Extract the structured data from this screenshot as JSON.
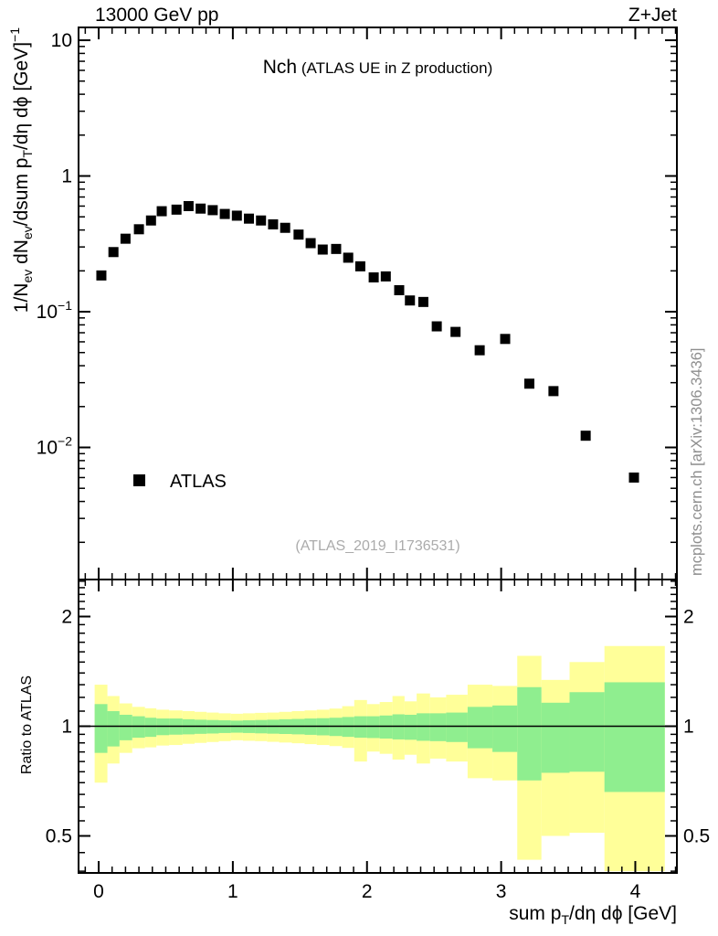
{
  "header": {
    "left": "13000 GeV pp",
    "right": "Z+Jet"
  },
  "title": {
    "main": "Nch",
    "detail": "(ATLAS UE in Z production)"
  },
  "legend": {
    "items": [
      {
        "label": "ATLAS",
        "marker": "filled-square",
        "color": "#000000"
      }
    ]
  },
  "watermark": {
    "text": "(ATLAS_2019_I1736531)",
    "color": "#ABABAB"
  },
  "side_note": {
    "text": "mcplots.cern.ch [arXiv:1306.3436]",
    "color": "#8E8E8E"
  },
  "colors": {
    "band_outer": "#FFFF99",
    "band_inner": "#8FEE8F",
    "marker": "#000000",
    "frame": "#000000"
  },
  "axes": {
    "x": {
      "title_parts": [
        {
          "t": "sum p"
        },
        {
          "t": "T",
          "s": "sub"
        },
        {
          "t": "/dη dϕ [GeV]"
        }
      ],
      "tick_values": [
        0,
        1,
        2,
        3,
        4
      ],
      "tick_labels": [
        "0",
        "1",
        "2",
        "3",
        "4"
      ],
      "minor_step": 0.1,
      "range": [
        -0.15,
        4.31
      ]
    },
    "y_main": {
      "title_parts": [
        {
          "t": "1/N"
        },
        {
          "t": "ev",
          "s": "sub"
        },
        {
          "t": " dN"
        },
        {
          "t": "ev",
          "s": "sub"
        },
        {
          "t": "/dsum p"
        },
        {
          "t": "T",
          "s": "sub"
        },
        {
          "t": "/dη dϕ  [GeV]"
        },
        {
          "t": "−1",
          "s": "sup"
        }
      ],
      "scale": "log",
      "range": [
        0.001064,
        12.43
      ],
      "tick_values": [
        10,
        1,
        0.1,
        0.01
      ],
      "tick_labels": [
        {
          "base": "10",
          "exp": ""
        },
        {
          "base": "1",
          "exp": ""
        },
        {
          "base": "10",
          "exp": "−1"
        },
        {
          "base": "10",
          "exp": "−2"
        }
      ]
    },
    "y_ratio": {
      "title": "Ratio to ATLAS",
      "scale": "log",
      "range": [
        0.3957,
        2.527
      ],
      "tick_values": [
        2,
        1,
        0.5
      ],
      "tick_labels": [
        "2",
        "1",
        "0.5"
      ],
      "minor_ticks": [
        0.4,
        0.45,
        0.55,
        0.6,
        0.65,
        0.7,
        0.75,
        0.8,
        0.85,
        0.9,
        0.95,
        1.1,
        1.2,
        1.3,
        1.4,
        1.5,
        1.6,
        1.7,
        1.8,
        1.9,
        2.1,
        2.2,
        2.3,
        2.4,
        2.5
      ]
    }
  },
  "chart_data": [
    {
      "type": "scatter",
      "panel": "main",
      "title": "Nch (ATLAS UE in Z production)",
      "xlabel": "sum pT/deta dphi [GeV]",
      "ylabel": "1/Nev dNev/dsum pT/deta dphi [GeV]^-1",
      "xscale": "linear",
      "yscale": "log",
      "xlim": [
        -0.15,
        4.31
      ],
      "ylim": [
        0.001064,
        12.43
      ],
      "legend_position": "lower-left-inside",
      "grid": false,
      "series": [
        {
          "name": "ATLAS",
          "marker": "filled-square",
          "color": "#000000",
          "marker_size": 11,
          "x": [
            0.02,
            0.11,
            0.2,
            0.3,
            0.39,
            0.47,
            0.58,
            0.67,
            0.76,
            0.85,
            0.94,
            1.03,
            1.12,
            1.21,
            1.3,
            1.39,
            1.49,
            1.58,
            1.67,
            1.77,
            1.86,
            1.95,
            2.05,
            2.14,
            2.24,
            2.32,
            2.42,
            2.52,
            2.66,
            2.84,
            3.03,
            3.21,
            3.39,
            3.63,
            3.99
          ],
          "y": [
            0.185,
            0.275,
            0.345,
            0.405,
            0.47,
            0.55,
            0.565,
            0.6,
            0.575,
            0.56,
            0.525,
            0.51,
            0.485,
            0.47,
            0.44,
            0.415,
            0.37,
            0.32,
            0.287,
            0.29,
            0.25,
            0.216,
            0.179,
            0.182,
            0.144,
            0.121,
            0.118,
            0.078,
            0.071,
            0.052,
            0.063,
            0.0295,
            0.026,
            0.0122,
            0.006
          ]
        }
      ]
    },
    {
      "type": "area",
      "panel": "ratio",
      "ylabel": "Ratio to ATLAS",
      "yscale": "log",
      "xlim": [
        -0.15,
        4.31
      ],
      "ylim": [
        0.3957,
        2.527
      ],
      "reference_line": 1,
      "bin_edges": [
        -0.03,
        0.065,
        0.155,
        0.25,
        0.345,
        0.43,
        0.525,
        0.625,
        0.715,
        0.805,
        0.895,
        0.985,
        1.075,
        1.165,
        1.255,
        1.345,
        1.44,
        1.535,
        1.625,
        1.72,
        1.815,
        1.905,
        2.0,
        2.095,
        2.19,
        2.28,
        2.37,
        2.47,
        2.59,
        2.75,
        2.935,
        3.12,
        3.3,
        3.51,
        3.77,
        4.22
      ],
      "outer_band": {
        "color": "#FFFF99",
        "hi": [
          1.3,
          1.21,
          1.155,
          1.13,
          1.12,
          1.11,
          1.105,
          1.1,
          1.095,
          1.09,
          1.085,
          1.082,
          1.085,
          1.088,
          1.09,
          1.095,
          1.1,
          1.105,
          1.11,
          1.118,
          1.135,
          1.18,
          1.15,
          1.165,
          1.21,
          1.17,
          1.23,
          1.2,
          1.22,
          1.3,
          1.29,
          1.56,
          1.34,
          1.5,
          1.66
        ],
        "lo": [
          0.7,
          0.79,
          0.845,
          0.87,
          0.875,
          0.885,
          0.888,
          0.895,
          0.9,
          0.905,
          0.91,
          0.915,
          0.912,
          0.91,
          0.906,
          0.902,
          0.898,
          0.893,
          0.888,
          0.882,
          0.872,
          0.8,
          0.852,
          0.84,
          0.81,
          0.835,
          0.79,
          0.815,
          0.8,
          0.72,
          0.71,
          0.43,
          0.5,
          0.51,
          0.4
        ]
      },
      "inner_band": {
        "color": "#8FEE8F",
        "hi": [
          1.15,
          1.1,
          1.075,
          1.065,
          1.055,
          1.05,
          1.05,
          1.045,
          1.042,
          1.04,
          1.038,
          1.036,
          1.038,
          1.04,
          1.042,
          1.045,
          1.047,
          1.05,
          1.052,
          1.055,
          1.06,
          1.065,
          1.065,
          1.07,
          1.078,
          1.075,
          1.085,
          1.085,
          1.09,
          1.13,
          1.14,
          1.28,
          1.16,
          1.24,
          1.32
        ],
        "lo": [
          0.845,
          0.88,
          0.915,
          0.93,
          0.935,
          0.945,
          0.948,
          0.95,
          0.953,
          0.955,
          0.958,
          0.96,
          0.958,
          0.956,
          0.954,
          0.952,
          0.95,
          0.947,
          0.944,
          0.94,
          0.935,
          0.93,
          0.928,
          0.925,
          0.92,
          0.918,
          0.912,
          0.91,
          0.905,
          0.87,
          0.85,
          0.71,
          0.745,
          0.75,
          0.66
        ]
      }
    }
  ]
}
